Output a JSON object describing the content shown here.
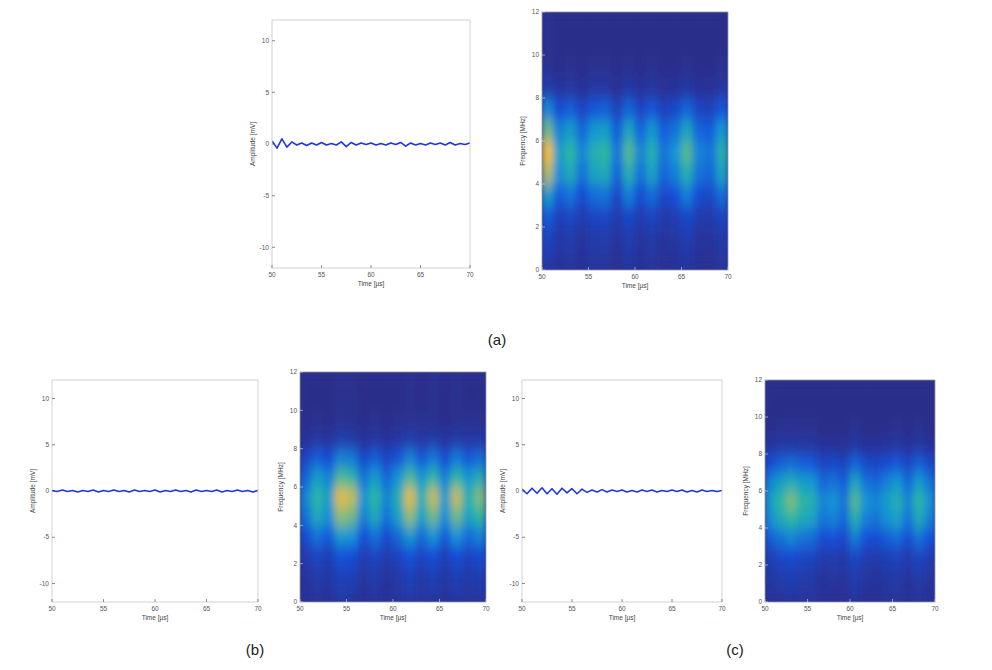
{
  "chart_data": [
    {
      "type": "line",
      "x_label": "Time [µs]",
      "y_label": "Amplitude [mV]",
      "xlim": [
        50,
        70
      ],
      "ylim": [
        -12,
        12
      ],
      "xticks": [
        50,
        55,
        60,
        65,
        70
      ],
      "yticks": [
        -10,
        -5,
        0,
        5,
        10
      ],
      "color": "#1f35e0",
      "marker": "none",
      "line_style": "solid",
      "grid": false,
      "x": [
        50,
        50.5,
        51,
        51.5,
        52,
        52.5,
        53,
        53.5,
        54,
        54.5,
        55,
        55.5,
        56,
        56.5,
        57,
        57.5,
        58,
        58.5,
        59,
        59.5,
        60,
        60.5,
        61,
        61.5,
        62,
        62.5,
        63,
        63.5,
        64,
        64.5,
        65,
        65.5,
        66,
        66.5,
        67,
        67.5,
        68,
        68.5,
        69,
        69.5,
        70
      ],
      "values": [
        0.3,
        -0.4,
        0.5,
        -0.3,
        0.2,
        -0.1,
        0.1,
        -0.15,
        0.1,
        -0.1,
        0.15,
        -0.1,
        0.05,
        -0.1,
        0.2,
        -0.25,
        0.15,
        -0.1,
        0.1,
        -0.05,
        0.1,
        -0.1,
        0.05,
        -0.1,
        0.1,
        -0.05,
        0.15,
        -0.2,
        0.1,
        -0.1,
        0.05,
        -0.1,
        0.1,
        -0.05,
        0.1,
        -0.1,
        0.15,
        -0.1,
        0.05,
        -0.05,
        0.1
      ]
    },
    {
      "type": "heatmap",
      "x_label": "Time [µs]",
      "y_label": "Frequency [MHz]",
      "xlim": [
        50,
        70
      ],
      "ylim": [
        0,
        12
      ],
      "xticks": [
        50,
        55,
        60,
        65,
        70
      ],
      "yticks": [
        0,
        2,
        4,
        6,
        8,
        10,
        12
      ],
      "zlim": [
        0,
        1
      ],
      "xbins": [
        50,
        51.25,
        52.5,
        53.75,
        55,
        56.25,
        57.5,
        58.75,
        60,
        61.25,
        62.5,
        63.75,
        65,
        66.25,
        67.5,
        68.75,
        70
      ],
      "ybins": [
        0,
        1,
        2,
        3,
        4,
        5,
        6,
        7,
        8,
        9,
        10,
        11,
        12
      ],
      "z": [
        [
          0.09,
          0.14,
          0.23,
          0.45,
          0.77,
          0.9,
          0.68,
          0.36,
          0.09,
          0.03,
          0.02,
          0.02
        ],
        [
          0.05,
          0.07,
          0.11,
          0.23,
          0.38,
          0.45,
          0.34,
          0.18,
          0.05,
          0.01,
          0.01,
          0.01
        ],
        [
          0.06,
          0.09,
          0.15,
          0.3,
          0.51,
          0.6,
          0.45,
          0.24,
          0.06,
          0.02,
          0.01,
          0.01
        ],
        [
          0.04,
          0.05,
          0.09,
          0.18,
          0.3,
          0.35,
          0.26,
          0.14,
          0.04,
          0.01,
          0.01,
          0.01
        ],
        [
          0.06,
          0.08,
          0.14,
          0.28,
          0.47,
          0.55,
          0.41,
          0.22,
          0.06,
          0.02,
          0.01,
          0.01
        ],
        [
          0.06,
          0.09,
          0.15,
          0.3,
          0.51,
          0.6,
          0.45,
          0.24,
          0.06,
          0.02,
          0.01,
          0.01
        ],
        [
          0.03,
          0.05,
          0.08,
          0.15,
          0.26,
          0.3,
          0.23,
          0.12,
          0.03,
          0.01,
          0.01,
          0.01
        ],
        [
          0.07,
          0.1,
          0.16,
          0.33,
          0.55,
          0.65,
          0.49,
          0.26,
          0.07,
          0.02,
          0.01,
          0.01
        ],
        [
          0.04,
          0.05,
          0.09,
          0.18,
          0.3,
          0.35,
          0.26,
          0.14,
          0.04,
          0.01,
          0.01,
          0.01
        ],
        [
          0.06,
          0.08,
          0.14,
          0.28,
          0.47,
          0.55,
          0.41,
          0.22,
          0.06,
          0.02,
          0.01,
          0.01
        ],
        [
          0.03,
          0.05,
          0.08,
          0.15,
          0.26,
          0.3,
          0.23,
          0.12,
          0.03,
          0.01,
          0.01,
          0.01
        ],
        [
          0.04,
          0.06,
          0.1,
          0.2,
          0.34,
          0.4,
          0.3,
          0.16,
          0.04,
          0.01,
          0.01,
          0.01
        ],
        [
          0.07,
          0.1,
          0.16,
          0.33,
          0.55,
          0.65,
          0.49,
          0.26,
          0.07,
          0.02,
          0.01,
          0.01
        ],
        [
          0.04,
          0.05,
          0.09,
          0.18,
          0.3,
          0.35,
          0.26,
          0.14,
          0.04,
          0.01,
          0.01,
          0.01
        ],
        [
          0.03,
          0.05,
          0.08,
          0.15,
          0.26,
          0.3,
          0.23,
          0.12,
          0.03,
          0.01,
          0.01,
          0.01
        ],
        [
          0.06,
          0.08,
          0.14,
          0.28,
          0.47,
          0.55,
          0.41,
          0.22,
          0.06,
          0.02,
          0.01,
          0.01
        ]
      ]
    },
    {
      "type": "line",
      "x_label": "Time [µs]",
      "y_label": "Amplitude [mV]",
      "xlim": [
        50,
        70
      ],
      "ylim": [
        -12,
        12
      ],
      "xticks": [
        50,
        55,
        60,
        65,
        70
      ],
      "yticks": [
        -10,
        -5,
        0,
        5,
        10
      ],
      "color": "#1f35e0",
      "marker": "none",
      "line_style": "solid",
      "grid": false,
      "x": [
        50,
        50.5,
        51,
        51.5,
        52,
        52.5,
        53,
        53.5,
        54,
        54.5,
        55,
        55.5,
        56,
        56.5,
        57,
        57.5,
        58,
        58.5,
        59,
        59.5,
        60,
        60.5,
        61,
        61.5,
        62,
        62.5,
        63,
        63.5,
        64,
        64.5,
        65,
        65.5,
        66,
        66.5,
        67,
        67.5,
        68,
        68.5,
        69,
        69.5,
        70
      ],
      "values": [
        0.05,
        -0.05,
        0.1,
        -0.05,
        0.05,
        -0.1,
        0.05,
        -0.05,
        0.1,
        -0.1,
        0.05,
        -0.05,
        0.1,
        -0.05,
        0.05,
        -0.1,
        0.1,
        -0.05,
        0.05,
        -0.05,
        0.1,
        -0.1,
        0.05,
        -0.05,
        0.1,
        -0.05,
        0.05,
        -0.1,
        0.1,
        -0.05,
        0.05,
        -0.05,
        0.1,
        -0.1,
        0.05,
        -0.05,
        0.1,
        -0.05,
        0.05,
        -0.1,
        0.05
      ]
    },
    {
      "type": "heatmap",
      "x_label": "Time [µs]",
      "y_label": "Frequency [MHz]",
      "xlim": [
        50,
        70
      ],
      "ylim": [
        0,
        12
      ],
      "xticks": [
        50,
        55,
        60,
        65,
        70
      ],
      "yticks": [
        0,
        2,
        4,
        6,
        8,
        10,
        12
      ],
      "zlim": [
        0,
        1
      ],
      "xbins": [
        50,
        51.25,
        52.5,
        53.75,
        55,
        56.25,
        57.5,
        58.75,
        60,
        61.25,
        62.5,
        63.75,
        65,
        66.25,
        67.5,
        68.75,
        70
      ],
      "ybins": [
        0,
        1,
        2,
        3,
        4,
        5,
        6,
        7,
        8,
        9,
        10,
        11,
        12
      ],
      "z": [
        [
          0.04,
          0.05,
          0.09,
          0.18,
          0.3,
          0.35,
          0.26,
          0.14,
          0.04,
          0.01,
          0.01,
          0.01
        ],
        [
          0.06,
          0.09,
          0.15,
          0.3,
          0.51,
          0.6,
          0.45,
          0.24,
          0.06,
          0.02,
          0.01,
          0.01
        ],
        [
          0.05,
          0.07,
          0.11,
          0.23,
          0.38,
          0.45,
          0.34,
          0.18,
          0.05,
          0.01,
          0.01,
          0.01
        ],
        [
          0.09,
          0.13,
          0.21,
          0.43,
          0.72,
          0.85,
          0.64,
          0.34,
          0.09,
          0.03,
          0.02,
          0.02
        ],
        [
          0.08,
          0.12,
          0.2,
          0.4,
          0.68,
          0.8,
          0.6,
          0.32,
          0.08,
          0.02,
          0.02,
          0.02
        ],
        [
          0.04,
          0.06,
          0.1,
          0.2,
          0.34,
          0.4,
          0.3,
          0.16,
          0.04,
          0.01,
          0.01,
          0.01
        ],
        [
          0.06,
          0.09,
          0.15,
          0.3,
          0.51,
          0.6,
          0.45,
          0.24,
          0.06,
          0.02,
          0.01,
          0.01
        ],
        [
          0.04,
          0.05,
          0.09,
          0.18,
          0.3,
          0.35,
          0.26,
          0.14,
          0.04,
          0.01,
          0.01,
          0.01
        ],
        [
          0.06,
          0.08,
          0.14,
          0.28,
          0.47,
          0.55,
          0.41,
          0.22,
          0.06,
          0.02,
          0.01,
          0.01
        ],
        [
          0.09,
          0.13,
          0.21,
          0.43,
          0.72,
          0.85,
          0.64,
          0.34,
          0.09,
          0.03,
          0.02,
          0.02
        ],
        [
          0.06,
          0.08,
          0.14,
          0.28,
          0.47,
          0.55,
          0.41,
          0.22,
          0.06,
          0.02,
          0.01,
          0.01
        ],
        [
          0.08,
          0.12,
          0.2,
          0.4,
          0.68,
          0.8,
          0.6,
          0.32,
          0.08,
          0.02,
          0.02,
          0.02
        ],
        [
          0.05,
          0.07,
          0.11,
          0.23,
          0.38,
          0.45,
          0.34,
          0.18,
          0.05,
          0.01,
          0.01,
          0.01
        ],
        [
          0.08,
          0.12,
          0.2,
          0.4,
          0.68,
          0.8,
          0.6,
          0.32,
          0.08,
          0.02,
          0.02,
          0.02
        ],
        [
          0.06,
          0.08,
          0.14,
          0.28,
          0.47,
          0.55,
          0.41,
          0.22,
          0.06,
          0.02,
          0.01,
          0.01
        ],
        [
          0.07,
          0.11,
          0.18,
          0.35,
          0.6,
          0.7,
          0.53,
          0.28,
          0.07,
          0.02,
          0.01,
          0.01
        ]
      ]
    },
    {
      "type": "line",
      "x_label": "Time [µs]",
      "y_label": "Amplitude [mV]",
      "xlim": [
        50,
        70
      ],
      "ylim": [
        -12,
        12
      ],
      "xticks": [
        50,
        55,
        60,
        65,
        70
      ],
      "yticks": [
        -10,
        -5,
        0,
        5,
        10
      ],
      "color": "#1f35e0",
      "marker": "none",
      "line_style": "solid",
      "grid": false,
      "x": [
        50,
        50.5,
        51,
        51.5,
        52,
        52.5,
        53,
        53.5,
        54,
        54.5,
        55,
        55.5,
        56,
        56.5,
        57,
        57.5,
        58,
        58.5,
        59,
        59.5,
        60,
        60.5,
        61,
        61.5,
        62,
        62.5,
        63,
        63.5,
        64,
        64.5,
        65,
        65.5,
        66,
        66.5,
        67,
        67.5,
        68,
        68.5,
        69,
        69.5,
        70
      ],
      "values": [
        0.2,
        -0.3,
        0.3,
        -0.25,
        0.35,
        -0.3,
        0.25,
        -0.35,
        0.3,
        -0.2,
        0.25,
        -0.3,
        0.2,
        -0.15,
        0.1,
        -0.1,
        0.15,
        -0.1,
        0.1,
        -0.05,
        0.1,
        -0.1,
        0.05,
        -0.1,
        0.1,
        -0.05,
        0.1,
        -0.1,
        0.05,
        -0.05,
        0.1,
        -0.05,
        0.1,
        -0.1,
        0.05,
        -0.1,
        0.1,
        -0.05,
        0.05,
        -0.05,
        0.05
      ]
    },
    {
      "type": "heatmap",
      "x_label": "Time [µs]",
      "y_label": "Frequency [MHz]",
      "xlim": [
        50,
        70
      ],
      "ylim": [
        0,
        12
      ],
      "xticks": [
        50,
        55,
        60,
        65,
        70
      ],
      "yticks": [
        0,
        2,
        4,
        6,
        8,
        10,
        12
      ],
      "zlim": [
        0,
        1
      ],
      "xbins": [
        50,
        51.25,
        52.5,
        53.75,
        55,
        56.25,
        57.5,
        58.75,
        60,
        61.25,
        62.5,
        63.75,
        65,
        66.25,
        67.5,
        68.75,
        70
      ],
      "ybins": [
        0,
        1,
        2,
        3,
        4,
        5,
        6,
        7,
        8,
        9,
        10,
        11,
        12
      ],
      "z": [
        [
          0.05,
          0.07,
          0.11,
          0.23,
          0.38,
          0.45,
          0.34,
          0.18,
          0.05,
          0.01,
          0.01,
          0.01
        ],
        [
          0.06,
          0.09,
          0.15,
          0.3,
          0.51,
          0.6,
          0.45,
          0.24,
          0.06,
          0.02,
          0.01,
          0.01
        ],
        [
          0.07,
          0.11,
          0.18,
          0.35,
          0.6,
          0.7,
          0.53,
          0.28,
          0.07,
          0.02,
          0.01,
          0.01
        ],
        [
          0.06,
          0.09,
          0.15,
          0.3,
          0.51,
          0.6,
          0.45,
          0.24,
          0.06,
          0.02,
          0.01,
          0.01
        ],
        [
          0.06,
          0.08,
          0.14,
          0.28,
          0.47,
          0.55,
          0.41,
          0.22,
          0.06,
          0.02,
          0.01,
          0.01
        ],
        [
          0.04,
          0.05,
          0.09,
          0.18,
          0.3,
          0.35,
          0.26,
          0.14,
          0.04,
          0.01,
          0.01,
          0.01
        ],
        [
          0.04,
          0.06,
          0.1,
          0.2,
          0.34,
          0.4,
          0.3,
          0.16,
          0.04,
          0.01,
          0.01,
          0.01
        ],
        [
          0.03,
          0.05,
          0.08,
          0.15,
          0.26,
          0.3,
          0.23,
          0.12,
          0.03,
          0.01,
          0.01,
          0.01
        ],
        [
          0.07,
          0.1,
          0.16,
          0.33,
          0.55,
          0.65,
          0.49,
          0.26,
          0.07,
          0.02,
          0.01,
          0.01
        ],
        [
          0.04,
          0.06,
          0.1,
          0.2,
          0.34,
          0.4,
          0.3,
          0.16,
          0.04,
          0.01,
          0.01,
          0.01
        ],
        [
          0.04,
          0.05,
          0.09,
          0.18,
          0.3,
          0.35,
          0.26,
          0.14,
          0.04,
          0.01,
          0.01,
          0.01
        ],
        [
          0.05,
          0.07,
          0.11,
          0.23,
          0.38,
          0.45,
          0.34,
          0.18,
          0.05,
          0.01,
          0.01,
          0.01
        ],
        [
          0.06,
          0.08,
          0.14,
          0.28,
          0.47,
          0.55,
          0.41,
          0.22,
          0.06,
          0.02,
          0.01,
          0.01
        ],
        [
          0.04,
          0.05,
          0.09,
          0.18,
          0.3,
          0.35,
          0.26,
          0.14,
          0.04,
          0.01,
          0.01,
          0.01
        ],
        [
          0.06,
          0.09,
          0.15,
          0.3,
          0.51,
          0.6,
          0.45,
          0.24,
          0.06,
          0.02,
          0.01,
          0.01
        ],
        [
          0.04,
          0.06,
          0.1,
          0.2,
          0.34,
          0.4,
          0.3,
          0.16,
          0.04,
          0.01,
          0.01,
          0.01
        ]
      ]
    }
  ],
  "captions": [
    "(a)",
    "(b)",
    "(c)"
  ]
}
